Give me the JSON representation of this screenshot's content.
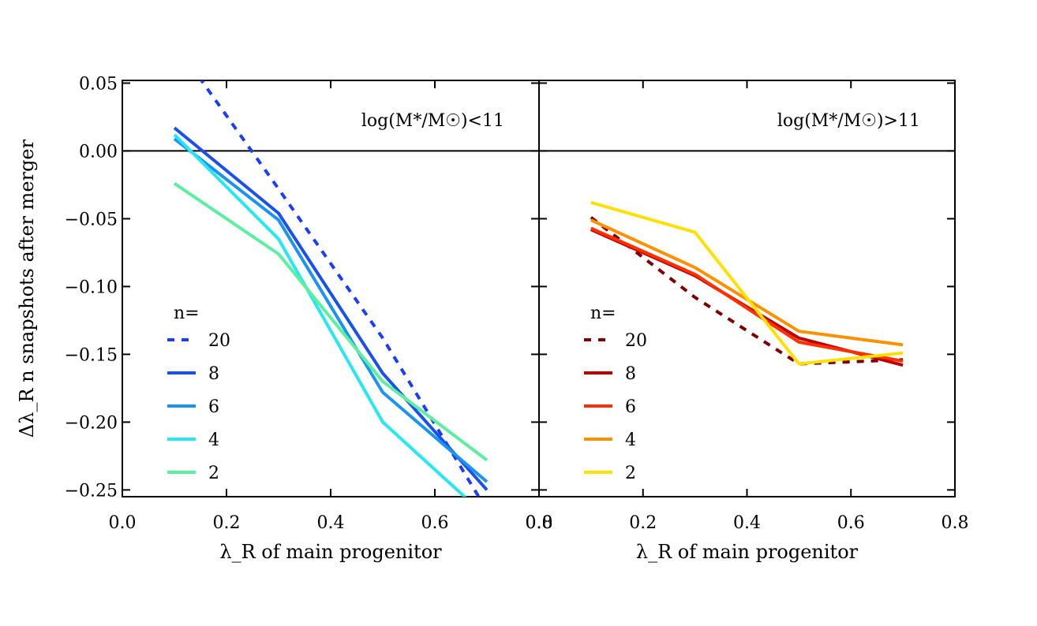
{
  "figure": {
    "ylabel": "Δλ_R n snapshots after merger",
    "ylim": [
      -0.255,
      0.052
    ],
    "yticks": [
      "0.05",
      "0.00",
      "−0.05",
      "−0.10",
      "−0.15",
      "−0.20",
      "−0.25"
    ],
    "ytick_values": [
      0.05,
      0.0,
      -0.05,
      -0.1,
      -0.15,
      -0.2,
      -0.25
    ],
    "xticks": [
      "0.0",
      "0.2",
      "0.4",
      "0.6",
      "0.8"
    ],
    "xtick_values": [
      0.0,
      0.2,
      0.4,
      0.6,
      0.8
    ],
    "zero_line": true
  },
  "chart_data": [
    {
      "type": "line",
      "title": "log(M*/M☉)<11",
      "xlabel": "λ_R of main progenitor",
      "ylabel": "Δλ_R n snapshots after merger",
      "xlim": [
        0.0,
        0.8
      ],
      "ylim": [
        -0.255,
        0.052
      ],
      "legend_title": "n=",
      "legend_position": "lower-left",
      "series": [
        {
          "name": "20",
          "color": "#1a3cff",
          "dashed": true,
          "x": [
            0.1,
            0.3,
            0.5,
            0.7
          ],
          "y": [
            0.08,
            -0.028,
            -0.138,
            -0.265
          ]
        },
        {
          "name": "8",
          "color": "#1a50ee",
          "dashed": false,
          "x": [
            0.1,
            0.3,
            0.5,
            0.7
          ],
          "y": [
            0.017,
            -0.046,
            -0.164,
            -0.25
          ]
        },
        {
          "name": "6",
          "color": "#1a94f2",
          "dashed": false,
          "x": [
            0.1,
            0.3,
            0.5,
            0.7
          ],
          "y": [
            0.009,
            -0.051,
            -0.178,
            -0.244
          ]
        },
        {
          "name": "4",
          "color": "#26e8f0",
          "dashed": false,
          "x": [
            0.1,
            0.3,
            0.5,
            0.7
          ],
          "y": [
            0.012,
            -0.065,
            -0.2,
            -0.27
          ]
        },
        {
          "name": "2",
          "color": "#5af0a0",
          "dashed": false,
          "x": [
            0.1,
            0.3,
            0.5,
            0.7
          ],
          "y": [
            -0.024,
            -0.076,
            -0.17,
            -0.228
          ]
        }
      ]
    },
    {
      "type": "line",
      "title": "log(M*/M☉)>11",
      "xlabel": "λ_R of main progenitor",
      "xlim": [
        0.0,
        0.8
      ],
      "ylim": [
        -0.255,
        0.052
      ],
      "legend_title": "n=",
      "legend_position": "lower-left",
      "series": [
        {
          "name": "20",
          "color": "#800000",
          "dashed": true,
          "x": [
            0.1,
            0.3,
            0.5,
            0.7
          ],
          "y": [
            -0.049,
            -0.108,
            -0.157,
            -0.154
          ]
        },
        {
          "name": "8",
          "color": "#c00000",
          "dashed": false,
          "x": [
            0.1,
            0.3,
            0.5,
            0.7
          ],
          "y": [
            -0.058,
            -0.092,
            -0.138,
            -0.158
          ]
        },
        {
          "name": "6",
          "color": "#ff3000",
          "dashed": false,
          "x": [
            0.1,
            0.3,
            0.5,
            0.7
          ],
          "y": [
            -0.057,
            -0.091,
            -0.141,
            -0.155
          ]
        },
        {
          "name": "4",
          "color": "#ff9000",
          "dashed": false,
          "x": [
            0.1,
            0.3,
            0.5,
            0.7
          ],
          "y": [
            -0.051,
            -0.086,
            -0.133,
            -0.143
          ]
        },
        {
          "name": "2",
          "color": "#ffe000",
          "dashed": false,
          "x": [
            0.1,
            0.3,
            0.5,
            0.7
          ],
          "y": [
            -0.038,
            -0.06,
            -0.157,
            -0.149
          ]
        }
      ]
    }
  ]
}
